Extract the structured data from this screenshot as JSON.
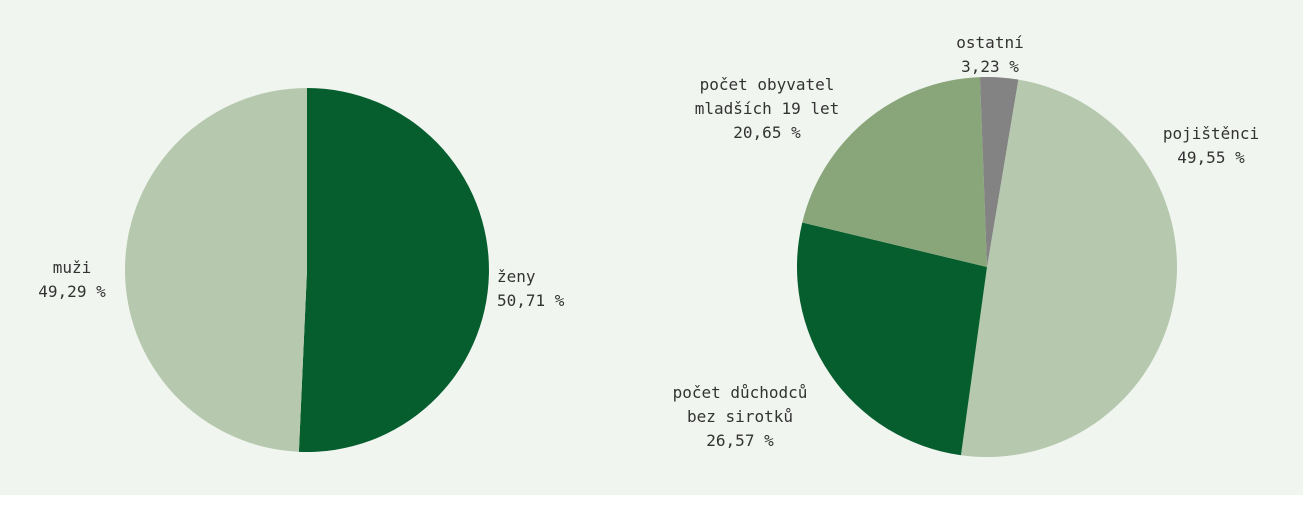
{
  "colors": {
    "background": "#f1f5f0",
    "dark_green": "#065e2e",
    "light_green": "#b6c9ae",
    "mid_green": "#89a67a",
    "gray": "#838383"
  },
  "chart_data": [
    {
      "type": "pie",
      "title": "",
      "slices": [
        {
          "name": "ženy",
          "value": 50.71,
          "value_label": "50,71 %",
          "color": "#065e2e"
        },
        {
          "name": "muži",
          "value": 49.29,
          "value_label": "49,29 %",
          "color": "#b6c9ae"
        }
      ]
    },
    {
      "type": "pie",
      "title": "",
      "slices": [
        {
          "name": "pojištěnci",
          "name_lines": [
            "pojištěnci"
          ],
          "value": 49.55,
          "value_label": "49,55 %",
          "color": "#b6c9ae"
        },
        {
          "name": "počet důchodců bez sirotků",
          "name_lines": [
            "počet důchodců",
            "bez sirotků"
          ],
          "value": 26.57,
          "value_label": "26,57 %",
          "color": "#065e2e"
        },
        {
          "name": "počet obyvatel mladších 19 let",
          "name_lines": [
            "počet obyvatel",
            "mladších 19 let"
          ],
          "value": 20.65,
          "value_label": "20,65 %",
          "color": "#89a67a"
        },
        {
          "name": "ostatní",
          "name_lines": [
            "ostatní"
          ],
          "value": 3.23,
          "value_label": "3,23 %",
          "color": "#838383"
        }
      ]
    }
  ]
}
